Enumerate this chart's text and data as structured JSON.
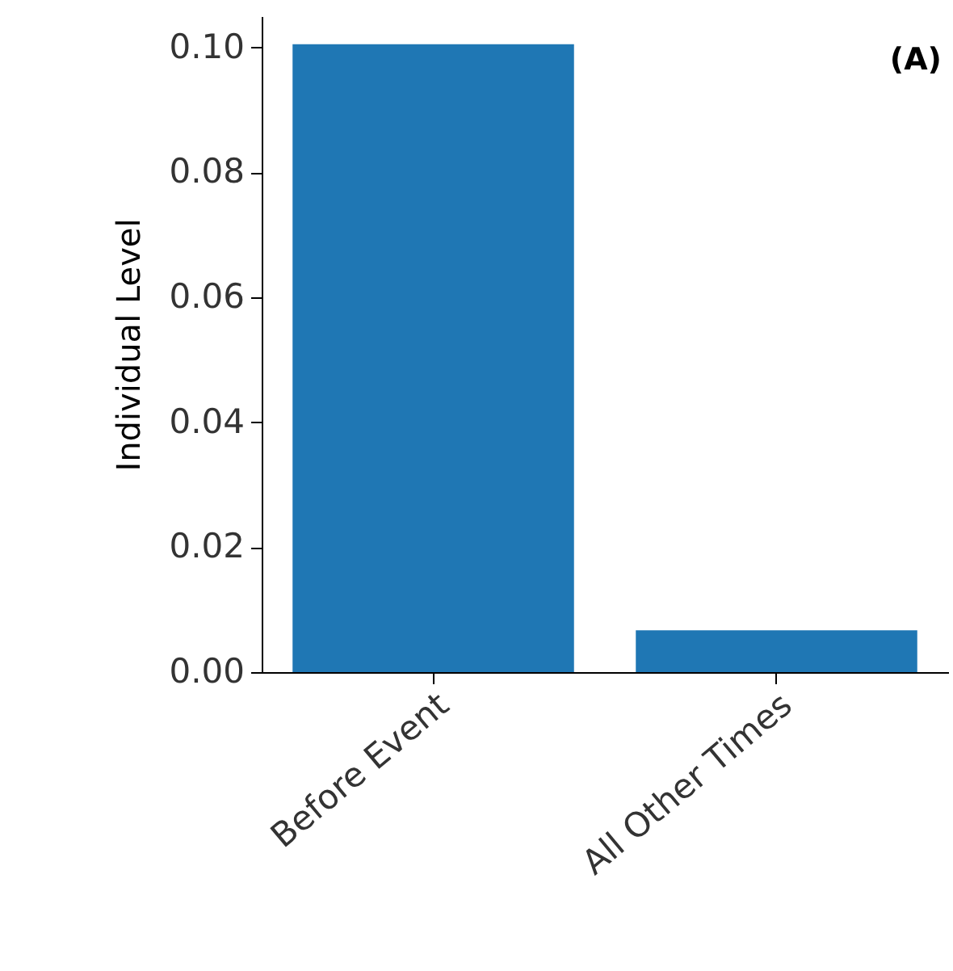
{
  "chart_data": {
    "type": "bar",
    "ylabel": "Individual Level",
    "categories": [
      "Before Event",
      "All Other Times"
    ],
    "values": [
      0.1005,
      0.0067
    ],
    "color": "#1f77b4",
    "ylim": [
      0,
      0.105
    ],
    "yticks": [
      {
        "value": 0,
        "label": "0.00"
      },
      {
        "value": 0.02,
        "label": "0.02"
      },
      {
        "value": 0.04,
        "label": "0.04"
      },
      {
        "value": 0.06,
        "label": "0.06"
      },
      {
        "value": 0.08,
        "label": "0.08"
      },
      {
        "value": 0.1,
        "label": "0.10"
      }
    ],
    "grid": false,
    "annotations": [
      "(A)"
    ]
  }
}
